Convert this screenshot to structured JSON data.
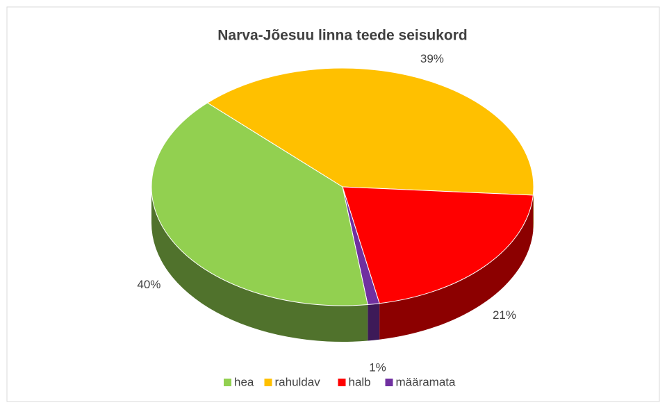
{
  "chart_data": {
    "type": "pie3d",
    "title": "Narva-Jõesuu linna teede seisukord",
    "categories": [
      "hea",
      "rahuldav",
      "halb",
      "määramata"
    ],
    "values": [
      40,
      39,
      21,
      1
    ],
    "value_labels": [
      "40%",
      "39%",
      "21%",
      "1%"
    ],
    "colors": [
      "#92d050",
      "#ffc000",
      "#ff0000",
      "#7030a0"
    ],
    "legend": "bottom"
  }
}
